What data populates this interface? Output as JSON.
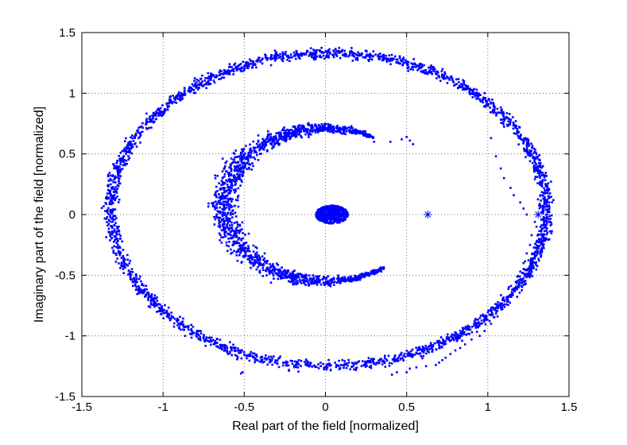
{
  "chart_data": {
    "type": "scatter",
    "title": "",
    "xlabel": "Real part of the field [normalized]",
    "ylabel": "Imaginary part of the field [normalized]",
    "xlim": [
      -1.5,
      1.5
    ],
    "ylim": [
      -1.5,
      1.5
    ],
    "grid": true,
    "grid_style": "dotted",
    "box": true,
    "xticks": [
      -1.5,
      -1,
      -0.5,
      0,
      0.5,
      1,
      1.5
    ],
    "yticks": [
      -1.5,
      -1,
      -0.5,
      0,
      0.5,
      1,
      1.5
    ],
    "xtick_labels": [
      "-1.5",
      "-1",
      "-0.5",
      "0",
      "0.5",
      "1",
      "1.5"
    ],
    "ytick_labels": [
      "-1.5",
      "-1",
      "-0.5",
      "0",
      "0.5",
      "1",
      "1.5"
    ],
    "marker_color": "#0000ff",
    "series": [
      {
        "kind": "ring",
        "description_points": "outer ring of dense scattered points",
        "center": [
          0.02,
          0.04
        ],
        "radius_x": 1.34,
        "radius_y": 1.29,
        "thickness": 0.07,
        "theta_range_deg": [
          0,
          360
        ]
      },
      {
        "kind": "arc",
        "description_points": "inner crescent arc of dense scattered points",
        "center": [
          0.0,
          0.08
        ],
        "radius": 0.63,
        "thickness": 0.07,
        "theta_range_deg": [
          62,
          305
        ]
      },
      {
        "kind": "cluster",
        "description_points": "central cluster near origin",
        "center": [
          0.04,
          0.0
        ],
        "radius_x": 0.1,
        "radius_y": 0.075
      },
      {
        "kind": "sparse",
        "description_points": "sparse trail points",
        "points": [
          [
            0.52,
            0.61
          ],
          [
            0.5,
            0.64
          ],
          [
            0.54,
            0.58
          ],
          [
            0.47,
            0.62
          ],
          [
            1.02,
            0.63
          ],
          [
            1.05,
            0.48
          ],
          [
            1.08,
            0.38
          ],
          [
            1.1,
            0.3
          ],
          [
            1.14,
            0.22
          ],
          [
            1.16,
            0.16
          ],
          [
            1.2,
            0.1
          ],
          [
            1.22,
            0.05
          ],
          [
            1.24,
            0.0
          ],
          [
            1.29,
            -0.06
          ],
          [
            1.3,
            -0.1
          ],
          [
            1.27,
            -0.17
          ],
          [
            1.26,
            -0.25
          ],
          [
            1.24,
            -0.32
          ],
          [
            1.22,
            -0.4
          ],
          [
            1.2,
            -0.47
          ],
          [
            1.18,
            -0.55
          ],
          [
            1.15,
            -0.62
          ],
          [
            1.12,
            -0.7
          ],
          [
            1.09,
            -0.78
          ],
          [
            1.06,
            -0.84
          ],
          [
            1.02,
            -0.9
          ],
          [
            0.98,
            -0.96
          ],
          [
            0.95,
            -1.0
          ],
          [
            0.9,
            -1.03
          ],
          [
            0.86,
            -1.07
          ],
          [
            0.83,
            -1.1
          ],
          [
            0.8,
            -1.12
          ],
          [
            0.77,
            -1.15
          ],
          [
            0.74,
            -1.18
          ],
          [
            0.72,
            -1.2
          ],
          [
            0.7,
            -1.22
          ],
          [
            0.68,
            -1.24
          ],
          [
            0.62,
            -1.25
          ],
          [
            0.56,
            -1.26
          ],
          [
            0.52,
            -1.27
          ],
          [
            0.5,
            -1.3
          ],
          [
            0.44,
            -1.3
          ],
          [
            0.41,
            -1.32
          ],
          [
            -0.52,
            -1.31
          ],
          [
            -0.51,
            -1.3
          ],
          [
            0.12,
            -0.52
          ],
          [
            0.08,
            -0.54
          ],
          [
            0.14,
            -0.52
          ],
          [
            0.04,
            -0.55
          ],
          [
            0.3,
            0.6
          ],
          [
            0.4,
            0.6
          ]
        ]
      },
      {
        "kind": "star",
        "description_points": "star markers",
        "points": [
          [
            0.63,
            0.0
          ],
          [
            1.31,
            0.0
          ]
        ]
      }
    ]
  }
}
